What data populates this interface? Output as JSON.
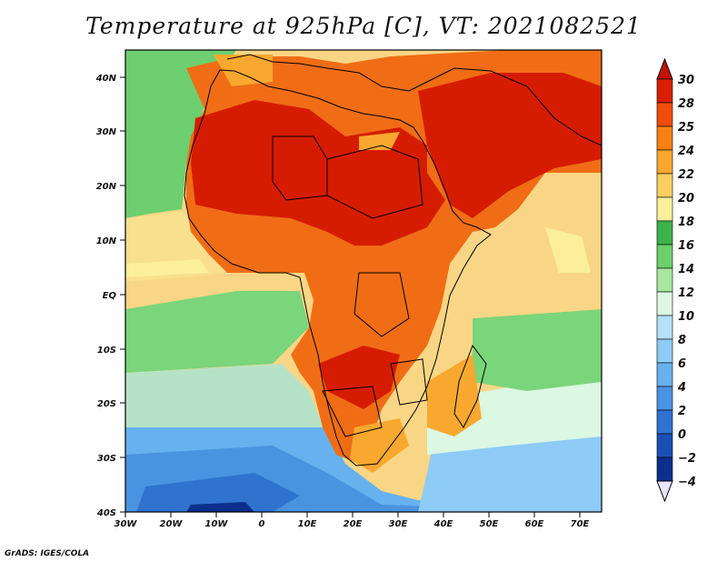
{
  "title": "Temperature at 925hPa [C], VT: 2021082521",
  "credit": "GrADS: IGES/COLA",
  "map": {
    "lat_labels": [
      "40N",
      "30N",
      "20N",
      "10N",
      "EQ",
      "10S",
      "20S",
      "30S",
      "40S"
    ],
    "lon_labels": [
      "30W",
      "20W",
      "10W",
      "0",
      "10E",
      "20E",
      "30E",
      "40E",
      "50E",
      "60E",
      "70E"
    ],
    "lat_range": [
      -40,
      45
    ],
    "lon_range": [
      -30,
      75
    ],
    "field": "Temperature at 925hPa",
    "units": "C"
  },
  "colorbar": {
    "labels": [
      "30",
      "28",
      "25",
      "24",
      "22",
      "20",
      "18",
      "16",
      "14",
      "12",
      "10",
      "8",
      "6",
      "4",
      "2",
      "0",
      "-2",
      "-4"
    ],
    "colors": [
      "#d91f00",
      "#f04d0b",
      "#f78013",
      "#f9a82f",
      "#fbd061",
      "#fbef9b",
      "#3cb34a",
      "#6dd06c",
      "#a7e7a0",
      "#dcf7e2",
      "#b6e0fb",
      "#8fcbf7",
      "#67b1ee",
      "#4a93e0",
      "#2f73cf",
      "#1a4fb4",
      "#0c2f8c"
    ],
    "top_color": "#c21400",
    "bottom_color": "#e6e6ff"
  }
}
